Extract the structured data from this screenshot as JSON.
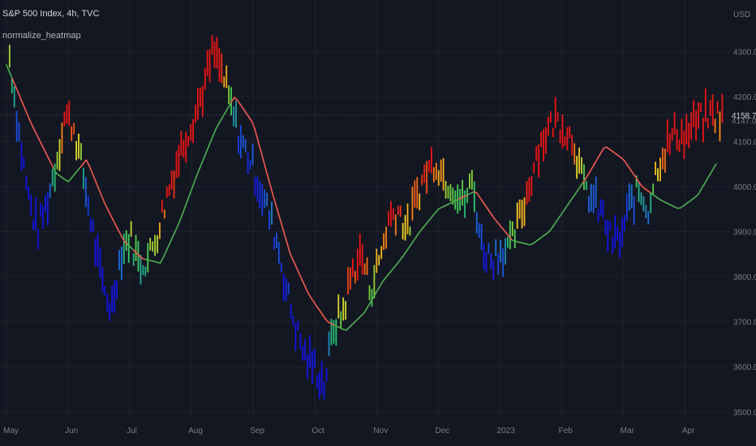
{
  "header": {
    "title": "S&P 500 Index, 4h, TVC",
    "indicator": "normalize_heatmap"
  },
  "price_axis": {
    "currency": "USD",
    "last_price": "4158.78",
    "secondary_price": "4147.00"
  },
  "colors": {
    "background": "#131722",
    "grid": "#1e222d",
    "ma_above": "#f05a4f",
    "ma_below": "#4caf50",
    "heat_low": "#1a1aff",
    "heat_mid": "#2ecc71",
    "heat_high": "#ff1a1a"
  },
  "chart_data": {
    "type": "line",
    "title": "S&P 500 Index, 4h, TVC",
    "y_ticks": [
      "3500.00",
      "3600.00",
      "3700.00",
      "3800.00",
      "3900.00",
      "4000.00",
      "4100.00",
      "4200.00",
      "4300.00"
    ],
    "x_ticks": [
      "May",
      "Jun",
      "Jul",
      "Aug",
      "Sep",
      "Oct",
      "Nov",
      "Dec",
      "2023",
      "Feb",
      "Mar",
      "Apr"
    ],
    "ylim": [
      3460,
      4360
    ],
    "xlim": [
      0,
      11.7
    ],
    "grid": true,
    "price_series": {
      "name": "",
      "x": [
        0.05,
        0.2,
        0.35,
        0.5,
        0.65,
        0.8,
        0.95,
        1.1,
        1.25,
        1.4,
        1.55,
        1.7,
        1.85,
        2.0,
        2.15,
        2.3,
        2.45,
        2.6,
        2.75,
        2.9,
        3.05,
        3.2,
        3.35,
        3.5,
        3.65,
        3.8,
        3.95,
        4.1,
        4.25,
        4.4,
        4.55,
        4.7,
        4.85,
        5.0,
        5.15,
        5.3,
        5.45,
        5.6,
        5.75,
        5.9,
        6.05,
        6.2,
        6.35,
        6.5,
        6.65,
        6.8,
        6.95,
        7.1,
        7.25,
        7.4,
        7.55,
        7.7,
        7.85,
        8.0,
        8.15,
        8.3,
        8.45,
        8.6,
        8.75,
        8.9,
        9.05,
        9.2,
        9.35,
        9.5,
        9.65,
        9.8,
        9.95,
        10.1,
        10.25,
        10.4,
        10.55,
        10.7,
        10.85,
        11.0,
        11.15,
        11.3,
        11.45,
        11.6
      ],
      "values": [
        4290,
        4120,
        3980,
        3900,
        3960,
        4050,
        4160,
        4130,
        4020,
        3900,
        3780,
        3730,
        3850,
        3890,
        3830,
        3840,
        3900,
        3980,
        4050,
        4110,
        4160,
        4220,
        4300,
        4250,
        4170,
        4100,
        4060,
        4000,
        3940,
        3870,
        3760,
        3680,
        3620,
        3600,
        3560,
        3690,
        3720,
        3810,
        3850,
        3770,
        3840,
        3930,
        3950,
        3900,
        3980,
        4030,
        4060,
        4020,
        4000,
        3960,
        4010,
        3870,
        3840,
        3860,
        3860,
        3920,
        3990,
        4080,
        4120,
        4150,
        4130,
        4100,
        4000,
        3970,
        3940,
        3880,
        3880,
        3960,
        3990,
        3950,
        4050,
        4090,
        4120,
        4110,
        4140,
        4150,
        4160,
        4155
      ]
    },
    "ma_series": {
      "name": "",
      "x": [
        0.0,
        0.4,
        0.8,
        1.0,
        1.3,
        1.6,
        1.9,
        2.2,
        2.5,
        2.8,
        3.1,
        3.4,
        3.7,
        4.0,
        4.3,
        4.6,
        4.9,
        5.2,
        5.5,
        5.8,
        6.1,
        6.4,
        6.7,
        7.0,
        7.3,
        7.6,
        7.9,
        8.2,
        8.5,
        8.8,
        9.1,
        9.4,
        9.7,
        10.0,
        10.3,
        10.6,
        10.9,
        11.2,
        11.5
      ],
      "values": [
        4270,
        4140,
        4030,
        4010,
        4060,
        3960,
        3880,
        3840,
        3830,
        3920,
        4030,
        4130,
        4200,
        4140,
        3990,
        3850,
        3760,
        3700,
        3680,
        3720,
        3790,
        3840,
        3900,
        3950,
        3970,
        3990,
        3930,
        3880,
        3870,
        3900,
        3960,
        4020,
        4090,
        4060,
        4000,
        3970,
        3950,
        3980,
        4050
      ]
    }
  }
}
